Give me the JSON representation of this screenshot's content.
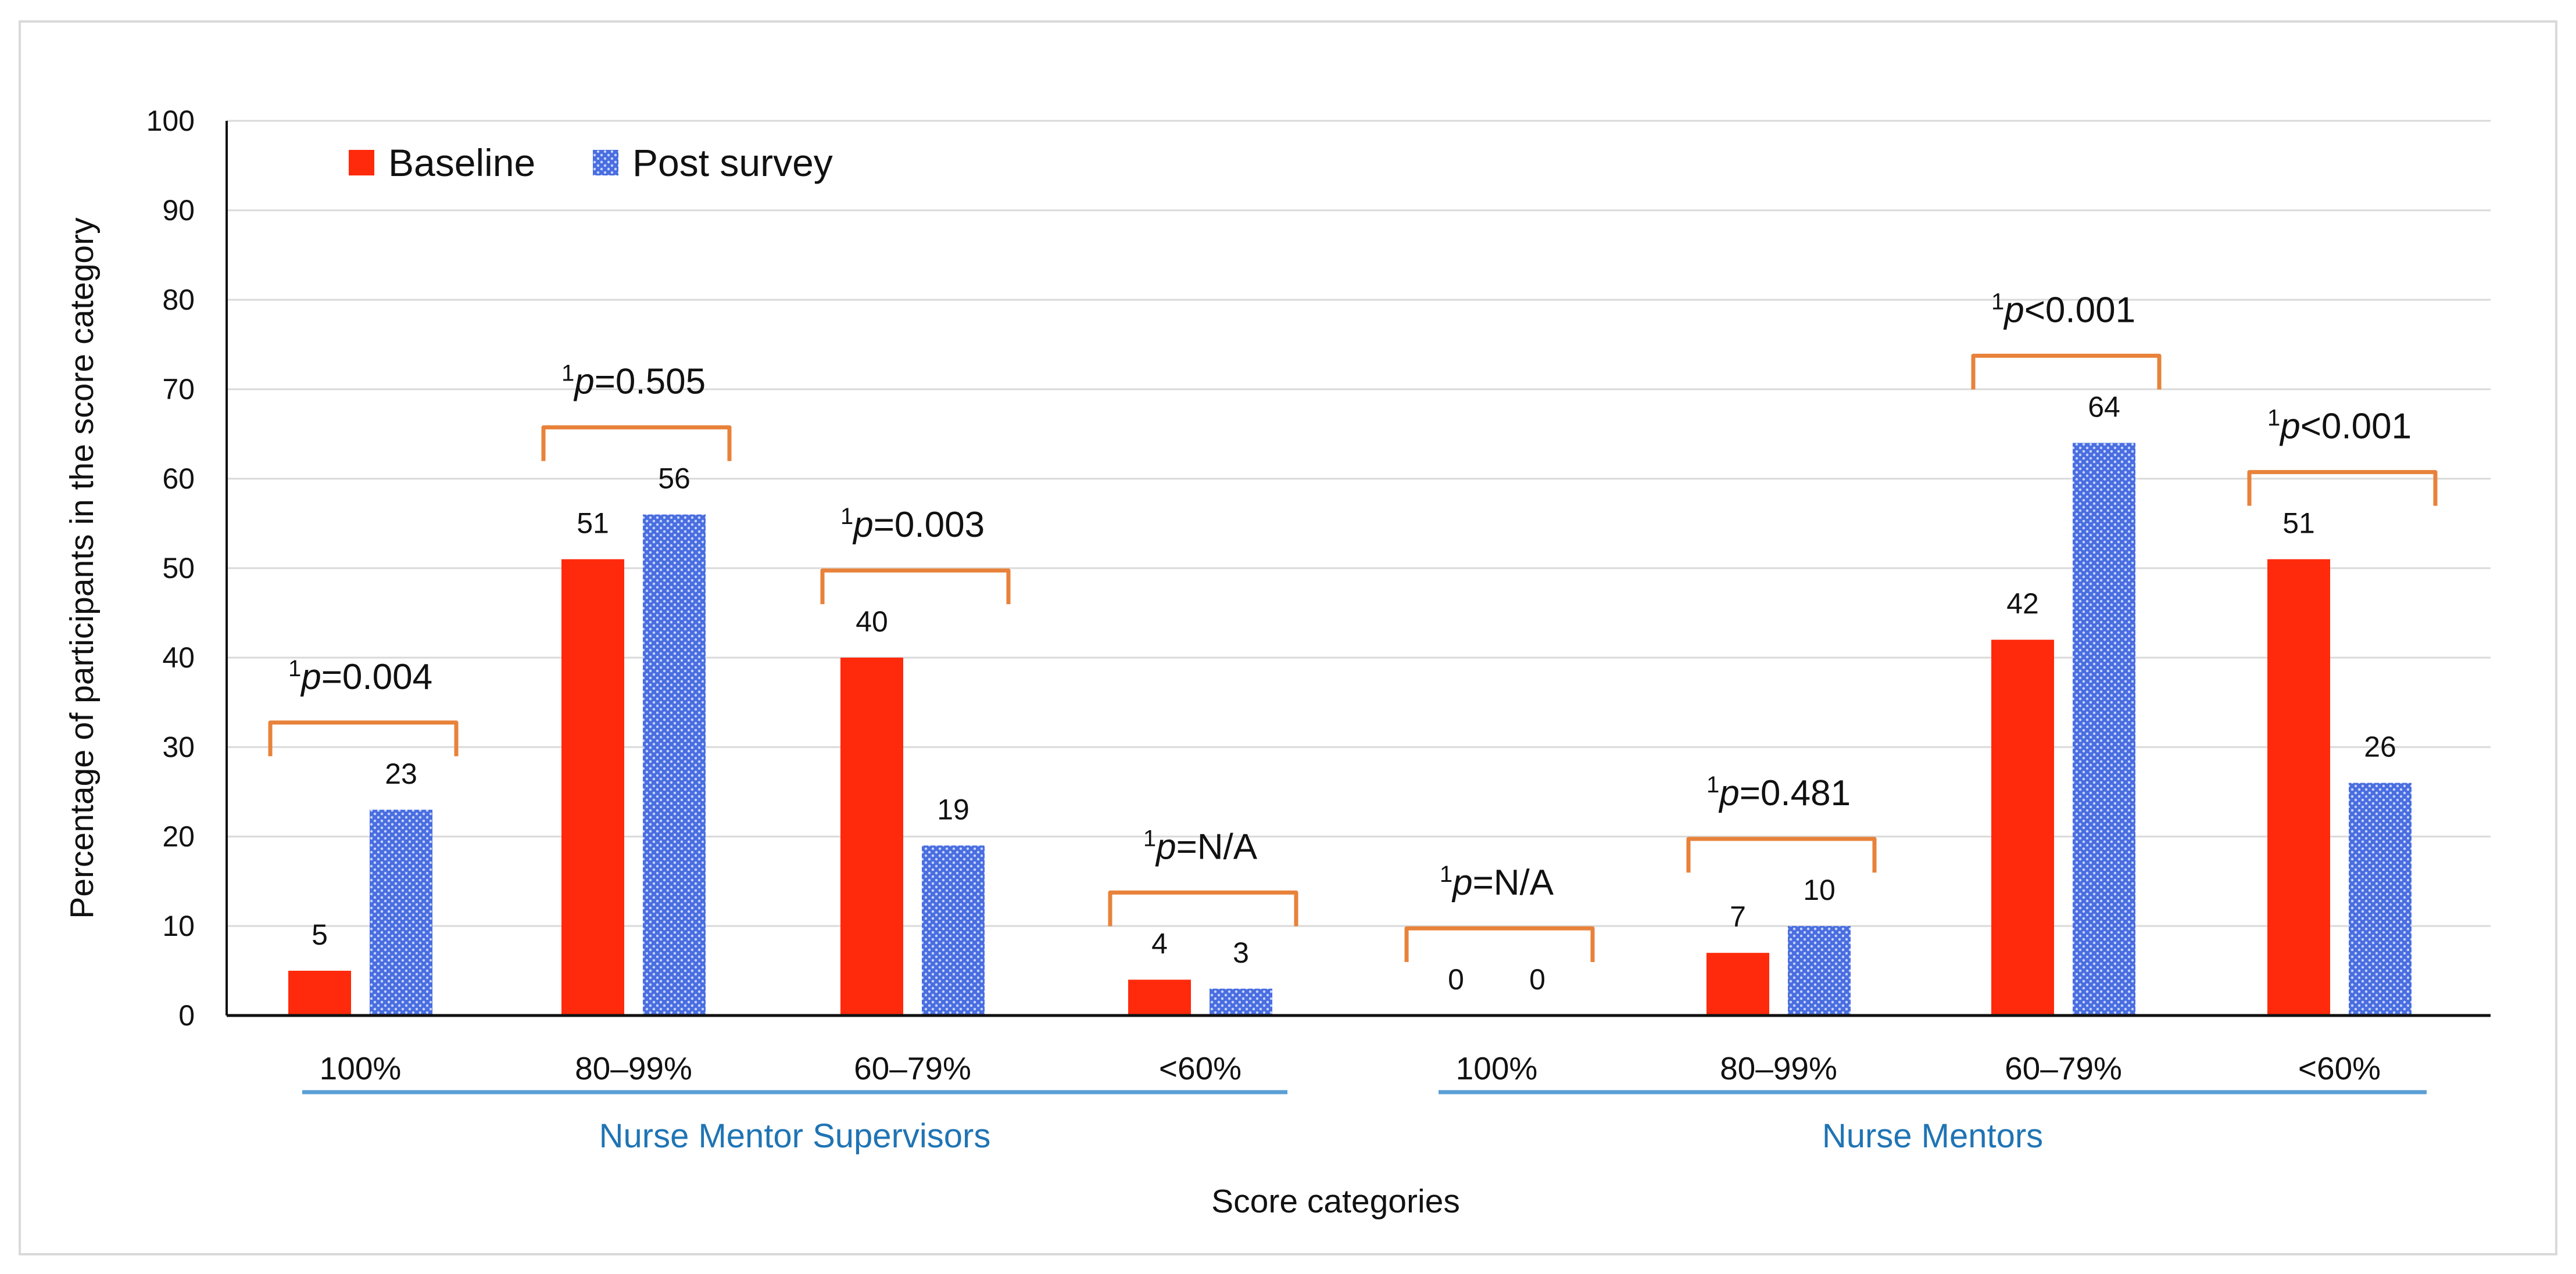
{
  "chart_data": {
    "type": "bar",
    "ylabel": "Percentage of participants in the score category",
    "xlabel": "Score categories",
    "ylim": [
      0,
      100
    ],
    "y_ticks": [
      0,
      10,
      20,
      30,
      40,
      50,
      60,
      70,
      80,
      90,
      100
    ],
    "grid": "horizontal",
    "legend_position": "top-left",
    "series": [
      {
        "name": "Baseline",
        "color": "#ff2a0b",
        "pattern": "solid",
        "values": [
          5,
          51,
          40,
          4,
          0,
          7,
          42,
          51
        ]
      },
      {
        "name": "Post survey",
        "color": "#4a6ee0",
        "pattern": "dotted",
        "values": [
          23,
          56,
          19,
          3,
          0,
          10,
          64,
          26
        ]
      }
    ],
    "categories": [
      "100%",
      "80–99%",
      "60–79%",
      "<60%",
      "100%",
      "80–99%",
      "60–79%",
      "<60%"
    ],
    "groups": [
      {
        "label": "Nurse Mentor Supervisors",
        "categories": [
          0,
          1,
          2,
          3
        ]
      },
      {
        "label": "Nurse Mentors",
        "categories": [
          4,
          5,
          6,
          7
        ]
      }
    ],
    "annotations": [
      {
        "sup": "1",
        "pvar": "p",
        "text": "=0.004",
        "category": 0
      },
      {
        "sup": "1",
        "pvar": "p",
        "text": "=0.505",
        "category": 1
      },
      {
        "sup": "1",
        "pvar": "p",
        "text": "=0.003",
        "category": 2
      },
      {
        "sup": "1",
        "pvar": "p",
        "text": "=N/A",
        "category": 3
      },
      {
        "sup": "1",
        "pvar": "p",
        "text": "=N/A",
        "category": 4
      },
      {
        "sup": "1",
        "pvar": "p",
        "text": "=0.481",
        "category": 5
      },
      {
        "sup": "1",
        "pvar": "p",
        "text": "<0.001",
        "category": 6
      },
      {
        "sup": "1",
        "pvar": "p",
        "text": "<0.001",
        "category": 7
      }
    ],
    "colors": {
      "bracket": "#e8823a",
      "group_line": "#5a9fd4",
      "group_text": "#1f74b4",
      "grid": "#d9d9d9"
    }
  }
}
